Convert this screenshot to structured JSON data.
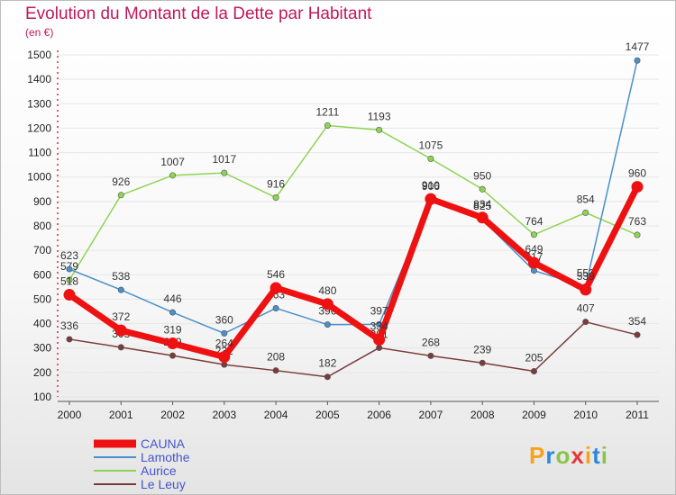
{
  "chart_title": "Evolution du Montant de la Dette par Habitant",
  "unit_label": "(en €)",
  "logo": {
    "text": "Proxiti",
    "colors": [
      "#f7a21b",
      "#2e86de",
      "#8bc34a",
      "#e53935",
      "#f7a21b",
      "#2e86de",
      "#8bc34a"
    ]
  },
  "chart_data": {
    "type": "line",
    "title": "Evolution du Montant de la Dette par Habitant",
    "ylabel": "(en €)",
    "ylim": [
      100,
      1500
    ],
    "y_ticks": [
      100,
      200,
      300,
      400,
      500,
      600,
      700,
      800,
      900,
      1000,
      1100,
      1200,
      1300,
      1400,
      1500
    ],
    "x": [
      "2000",
      "2001",
      "2002",
      "2003",
      "2004",
      "2005",
      "2006",
      "2007",
      "2008",
      "2009",
      "2010",
      "2011"
    ],
    "legend_position": "bottom-left",
    "series": [
      {
        "name": "Le Leuy",
        "color": "#7b3b3b",
        "values": [
          336,
          303,
          269,
          232,
          208,
          182,
          301,
          268,
          239,
          205,
          407,
          354
        ]
      },
      {
        "name": "Aurice",
        "color": "#8ed454",
        "values": [
          579,
          926,
          1007,
          1017,
          916,
          1211,
          1193,
          1075,
          950,
          764,
          854,
          763
        ]
      },
      {
        "name": "Lamothe",
        "color": "#4a90c9",
        "values": [
          623,
          538,
          446,
          360,
          463,
          396,
          397,
          906,
          825,
          617,
          552,
          1477
        ]
      },
      {
        "name": "CAUNA",
        "color": "#ee1111",
        "values": [
          518,
          372,
          319,
          264,
          546,
          480,
          334,
          910,
          834,
          649,
          539,
          960
        ]
      }
    ]
  }
}
